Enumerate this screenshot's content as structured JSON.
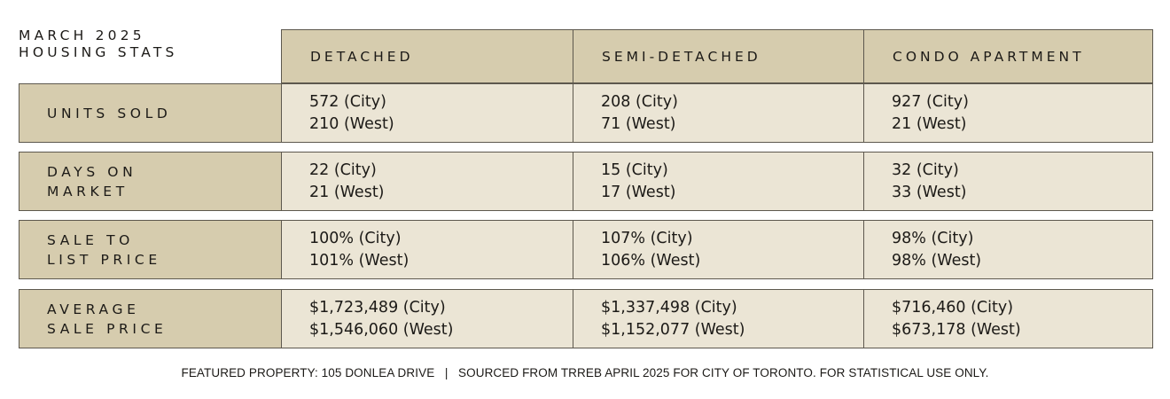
{
  "title": "MARCH 2025\nHOUSING STATS",
  "columns": [
    "DETACHED",
    "SEMI-DETACHED",
    "CONDO APARTMENT"
  ],
  "rows": [
    {
      "label": "UNITS SOLD",
      "cells": [
        {
          "city": "572 (City)",
          "west": "210 (West)"
        },
        {
          "city": "208 (City)",
          "west": "71 (West)"
        },
        {
          "city": "927 (City)",
          "west": "21 (West)"
        }
      ]
    },
    {
      "label": "DAYS ON\nMARKET",
      "cells": [
        {
          "city": "22 (City)",
          "west": "21 (West)"
        },
        {
          "city": "15 (City)",
          "west": "17 (West)"
        },
        {
          "city": "32 (City)",
          "west": "33 (West)"
        }
      ]
    },
    {
      "label": "SALE TO\nLIST PRICE",
      "cells": [
        {
          "city": "100% (City)",
          "west": "101% (West)"
        },
        {
          "city": "107% (City)",
          "west": "106% (West)"
        },
        {
          "city": "98% (City)",
          "west": "98% (West)"
        }
      ]
    },
    {
      "label": "AVERAGE\nSALE PRICE",
      "cells": [
        {
          "city": "$1,723,489 (City)",
          "west": "$1,546,060 (West)"
        },
        {
          "city": "$1,337,498 (City)",
          "west": "$1,152,077 (West)"
        },
        {
          "city": "$716,460 (City)",
          "west": "$673,178 (West)"
        }
      ]
    }
  ],
  "footer": "FEATURED PROPERTY: 105 DONLEA DRIVE   |   SOURCED FROM TRREB APRIL 2025 FOR CITY OF TORONTO. FOR STATISTICAL USE ONLY.",
  "colors": {
    "header_bg": "#d6ccae",
    "cell_bg": "#ebe5d5",
    "border": "#5d584e",
    "text": "#1c1a17"
  }
}
